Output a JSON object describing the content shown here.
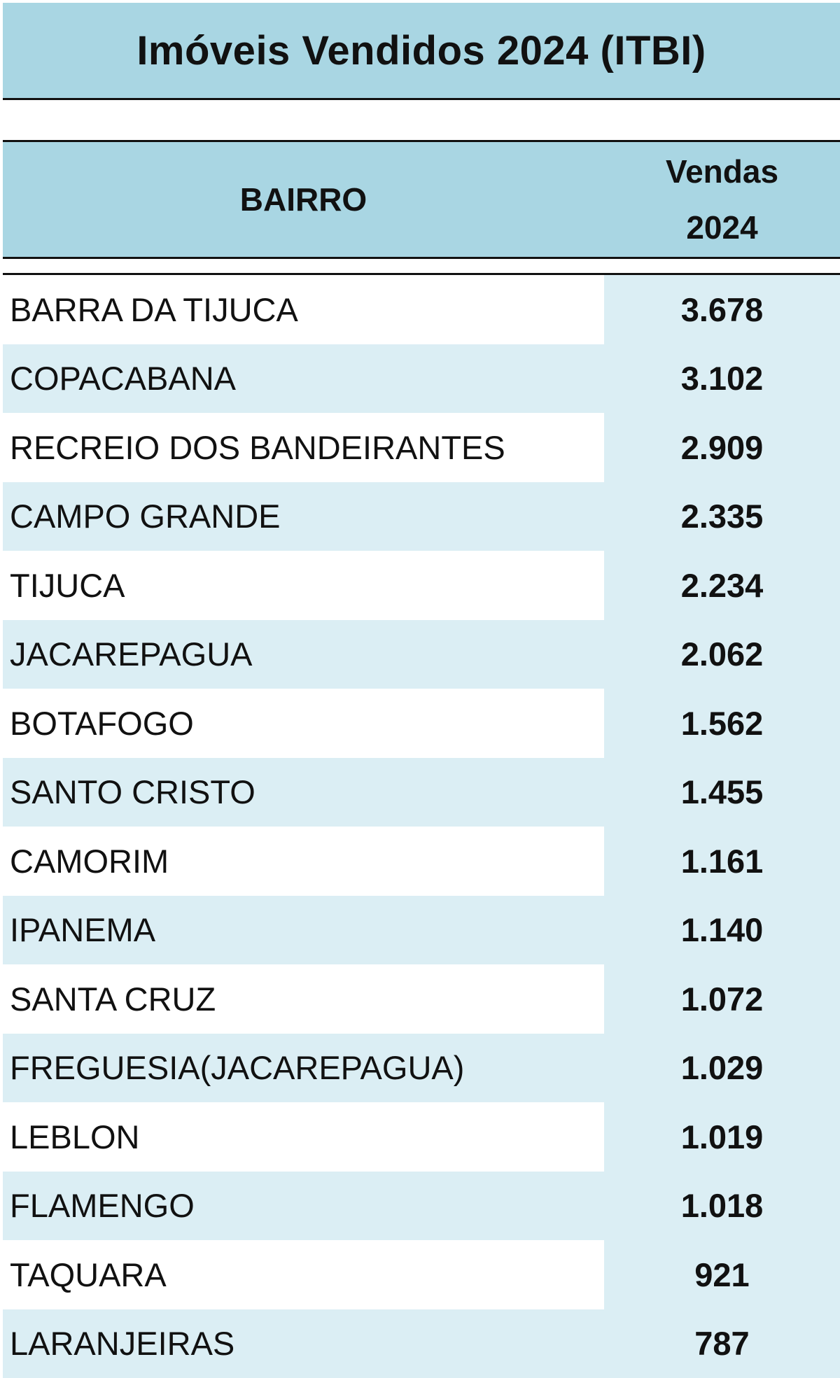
{
  "title": "Imóveis Vendidos 2024 (ITBI)",
  "table": {
    "columns": [
      "BAIRRO",
      "Vendas\n2024"
    ],
    "rows": [
      [
        "BARRA DA TIJUCA",
        "3.678"
      ],
      [
        "COPACABANA",
        "3.102"
      ],
      [
        "RECREIO DOS BANDEIRANTES",
        "2.909"
      ],
      [
        "CAMPO GRANDE",
        "2.335"
      ],
      [
        "TIJUCA",
        "2.234"
      ],
      [
        "JACAREPAGUA",
        "2.062"
      ],
      [
        "BOTAFOGO",
        "1.562"
      ],
      [
        "SANTO CRISTO",
        "1.455"
      ],
      [
        "CAMORIM",
        "1.161"
      ],
      [
        "IPANEMA",
        "1.140"
      ],
      [
        "SANTA CRUZ",
        "1.072"
      ],
      [
        "FREGUESIA(JACAREPAGUA)",
        "1.029"
      ],
      [
        "LEBLON",
        "1.019"
      ],
      [
        "FLAMENGO",
        "1.018"
      ],
      [
        "TAQUARA",
        "921"
      ],
      [
        "LARANJEIRAS",
        "787"
      ]
    ]
  }
}
